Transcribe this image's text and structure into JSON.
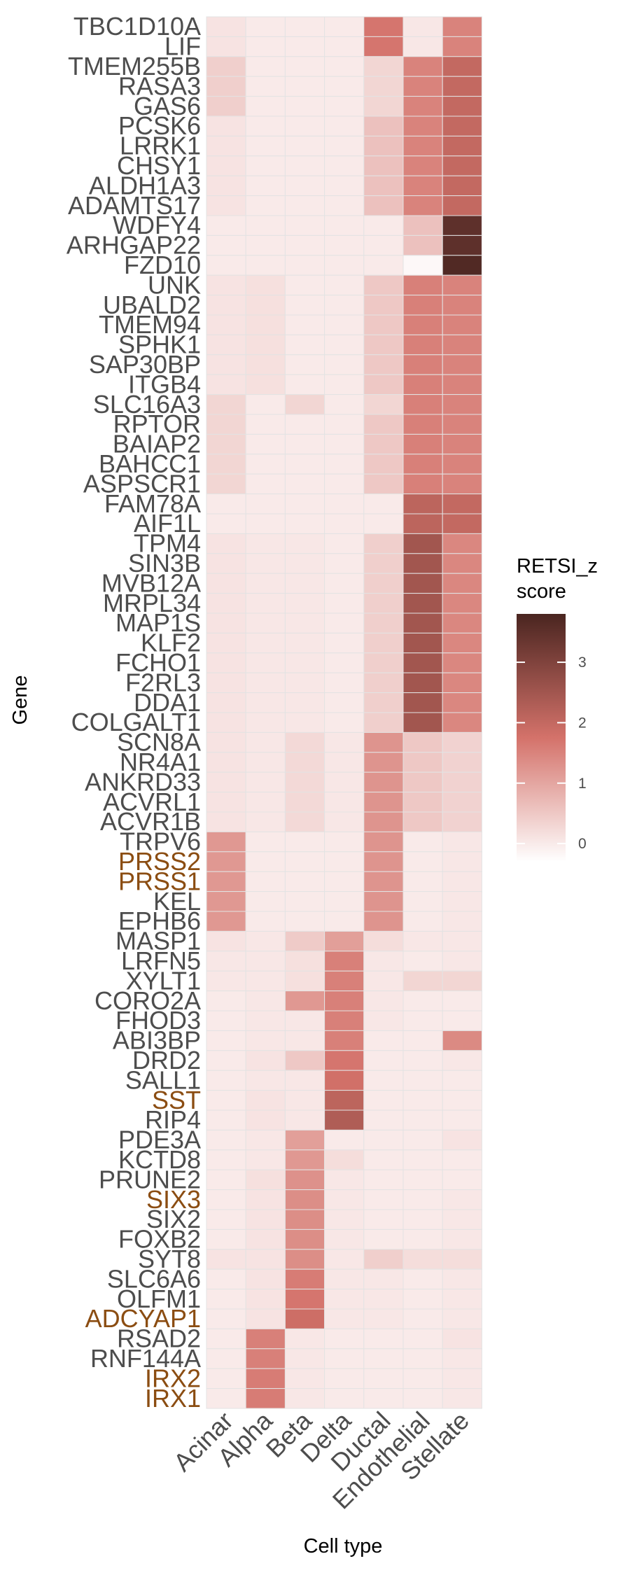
{
  "chart_data": {
    "type": "heatmap",
    "xlabel": "Cell type",
    "ylabel": "Gene",
    "legend_title_lines": [
      "RETSI_z",
      "score"
    ],
    "legend_ticks": [
      0,
      1,
      2,
      3
    ],
    "color_range": [
      -0.3,
      3.8
    ],
    "colors": {
      "low": "#ffffff",
      "mid": "#d4726a",
      "high": "#4a2520",
      "grid": "#e3e3e3",
      "gene_label": "#4d4d4d",
      "highlight_label": "#8b4d12"
    },
    "cell_types": [
      "Acinar",
      "Alpha",
      "Beta",
      "Delta",
      "Ductal",
      "Endothelial",
      "Stellate"
    ],
    "genes": [
      {
        "name": "TBC1D10A",
        "highlight": false,
        "values": [
          0.1,
          0,
          0,
          0,
          1.7,
          0.05,
          1.5
        ]
      },
      {
        "name": "LIF",
        "highlight": false,
        "values": [
          0.1,
          0,
          0,
          0,
          1.7,
          0.05,
          1.5
        ]
      },
      {
        "name": "TMEM255B",
        "highlight": false,
        "values": [
          0.4,
          0,
          0,
          0,
          0.3,
          1.5,
          2.0
        ]
      },
      {
        "name": "RASA3",
        "highlight": false,
        "values": [
          0.4,
          0,
          0,
          0,
          0.3,
          1.5,
          2.0
        ]
      },
      {
        "name": "GAS6",
        "highlight": false,
        "values": [
          0.4,
          0,
          0,
          0,
          0.3,
          1.5,
          2.0
        ]
      },
      {
        "name": "PCSK6",
        "highlight": false,
        "values": [
          0.1,
          0,
          0,
          0,
          0.6,
          1.5,
          2.0
        ]
      },
      {
        "name": "LRRK1",
        "highlight": false,
        "values": [
          0.1,
          0,
          0,
          0,
          0.6,
          1.5,
          2.0
        ]
      },
      {
        "name": "CHSY1",
        "highlight": false,
        "values": [
          0.1,
          0,
          0,
          0,
          0.6,
          1.5,
          2.0
        ]
      },
      {
        "name": "ALDH1A3",
        "highlight": false,
        "values": [
          0.1,
          0,
          0,
          0,
          0.6,
          1.5,
          2.0
        ]
      },
      {
        "name": "ADAMTS17",
        "highlight": false,
        "values": [
          0.1,
          0,
          0,
          0,
          0.6,
          1.5,
          2.0
        ]
      },
      {
        "name": "WDFY4",
        "highlight": false,
        "values": [
          0,
          0,
          0,
          0,
          0,
          0.6,
          3.5
        ]
      },
      {
        "name": "ARHGAP22",
        "highlight": false,
        "values": [
          0,
          0,
          0,
          0,
          0,
          0.6,
          3.5
        ]
      },
      {
        "name": "FZD10",
        "highlight": false,
        "values": [
          0,
          0,
          0,
          0,
          0,
          -0.2,
          3.7
        ]
      },
      {
        "name": "UNK",
        "highlight": false,
        "values": [
          0.1,
          0.15,
          0,
          0,
          0.5,
          1.55,
          1.5
        ]
      },
      {
        "name": "UBALD2",
        "highlight": false,
        "values": [
          0.1,
          0.15,
          0,
          0,
          0.5,
          1.55,
          1.5
        ]
      },
      {
        "name": "TMEM94",
        "highlight": false,
        "values": [
          0.1,
          0.15,
          0,
          0,
          0.5,
          1.55,
          1.5
        ]
      },
      {
        "name": "SPHK1",
        "highlight": false,
        "values": [
          0.1,
          0.15,
          0,
          0,
          0.5,
          1.55,
          1.5
        ]
      },
      {
        "name": "SAP30BP",
        "highlight": false,
        "values": [
          0.1,
          0.15,
          0,
          0,
          0.5,
          1.55,
          1.5
        ]
      },
      {
        "name": "ITGB4",
        "highlight": false,
        "values": [
          0.1,
          0.15,
          0,
          0,
          0.5,
          1.55,
          1.5
        ]
      },
      {
        "name": "SLC16A3",
        "highlight": false,
        "values": [
          0.3,
          0,
          0.3,
          0,
          0.3,
          1.55,
          1.5
        ]
      },
      {
        "name": "RPTOR",
        "highlight": false,
        "values": [
          0.3,
          0,
          0,
          0,
          0.5,
          1.55,
          1.5
        ]
      },
      {
        "name": "BAIAP2",
        "highlight": false,
        "values": [
          0.3,
          0,
          0,
          0,
          0.5,
          1.55,
          1.5
        ]
      },
      {
        "name": "BAHCC1",
        "highlight": false,
        "values": [
          0.3,
          0,
          0,
          0,
          0.5,
          1.55,
          1.5
        ]
      },
      {
        "name": "ASPSCR1",
        "highlight": false,
        "values": [
          0.3,
          0,
          0,
          0,
          0.5,
          1.55,
          1.5
        ]
      },
      {
        "name": "FAM78A",
        "highlight": false,
        "values": [
          0,
          0,
          0,
          0,
          0,
          2.1,
          2.0
        ]
      },
      {
        "name": "AIF1L",
        "highlight": false,
        "values": [
          0,
          0,
          0,
          0,
          0,
          2.1,
          2.0
        ]
      },
      {
        "name": "TPM4",
        "highlight": false,
        "values": [
          0.1,
          0.05,
          0.05,
          0,
          0.4,
          2.5,
          1.45
        ]
      },
      {
        "name": "SIN3B",
        "highlight": false,
        "values": [
          0.1,
          0.05,
          0.05,
          0,
          0.4,
          2.5,
          1.45
        ]
      },
      {
        "name": "MVB12A",
        "highlight": false,
        "values": [
          0.1,
          0.05,
          0.05,
          0,
          0.4,
          2.5,
          1.45
        ]
      },
      {
        "name": "MRPL34",
        "highlight": false,
        "values": [
          0.1,
          0.05,
          0.05,
          0,
          0.4,
          2.5,
          1.45
        ]
      },
      {
        "name": "MAP1S",
        "highlight": false,
        "values": [
          0.1,
          0.05,
          0.05,
          0,
          0.4,
          2.5,
          1.45
        ]
      },
      {
        "name": "KLF2",
        "highlight": false,
        "values": [
          0.1,
          0.05,
          0.05,
          0,
          0.4,
          2.5,
          1.45
        ]
      },
      {
        "name": "FCHO1",
        "highlight": false,
        "values": [
          0.1,
          0.05,
          0.05,
          0,
          0.4,
          2.5,
          1.45
        ]
      },
      {
        "name": "F2RL3",
        "highlight": false,
        "values": [
          0.1,
          0.05,
          0.05,
          0,
          0.4,
          2.5,
          1.45
        ]
      },
      {
        "name": "DDA1",
        "highlight": false,
        "values": [
          0.1,
          0.05,
          0.05,
          0,
          0.4,
          2.5,
          1.45
        ]
      },
      {
        "name": "COLGALT1",
        "highlight": false,
        "values": [
          0.1,
          0.05,
          0.05,
          0,
          0.4,
          2.5,
          1.45
        ]
      },
      {
        "name": "SCN8A",
        "highlight": false,
        "values": [
          0.1,
          0.05,
          0.25,
          0.05,
          1.25,
          0.5,
          0.35
        ]
      },
      {
        "name": "NR4A1",
        "highlight": false,
        "values": [
          0.1,
          0.05,
          0.25,
          0.05,
          1.25,
          0.5,
          0.35
        ]
      },
      {
        "name": "ANKRD33",
        "highlight": false,
        "values": [
          0.1,
          0.05,
          0.25,
          0.05,
          1.25,
          0.5,
          0.35
        ]
      },
      {
        "name": "ACVRL1",
        "highlight": false,
        "values": [
          0.1,
          0.05,
          0.25,
          0.05,
          1.25,
          0.5,
          0.35
        ]
      },
      {
        "name": "ACVR1B",
        "highlight": false,
        "values": [
          0.1,
          0.05,
          0.25,
          0.05,
          1.25,
          0.5,
          0.35
        ]
      },
      {
        "name": "TRPV6",
        "highlight": false,
        "values": [
          1.2,
          0,
          0,
          0,
          1.25,
          0,
          0.05
        ]
      },
      {
        "name": "PRSS2",
        "highlight": true,
        "values": [
          1.2,
          0,
          0,
          0,
          1.25,
          0,
          0.05
        ]
      },
      {
        "name": "PRSS1",
        "highlight": true,
        "values": [
          1.2,
          0,
          0,
          0,
          1.25,
          0,
          0.05
        ]
      },
      {
        "name": "KEL",
        "highlight": false,
        "values": [
          1.2,
          0,
          0,
          0,
          1.25,
          0,
          0.05
        ]
      },
      {
        "name": "EPHB6",
        "highlight": false,
        "values": [
          1.2,
          0,
          0,
          0,
          1.25,
          0,
          0.05
        ]
      },
      {
        "name": "MASP1",
        "highlight": false,
        "values": [
          0.1,
          0.05,
          0.45,
          1.1,
          0.2,
          0.05,
          0.05
        ]
      },
      {
        "name": "LRFN5",
        "highlight": false,
        "values": [
          0.05,
          0.05,
          0.15,
          1.55,
          0.05,
          0,
          0.05
        ]
      },
      {
        "name": "XYLT1",
        "highlight": false,
        "values": [
          0.05,
          0.05,
          0.15,
          1.55,
          0.05,
          0.3,
          0.3
        ]
      },
      {
        "name": "CORO2A",
        "highlight": false,
        "values": [
          0,
          0.05,
          1.2,
          1.55,
          0.05,
          0,
          0
        ]
      },
      {
        "name": "FHOD3",
        "highlight": false,
        "values": [
          0,
          0.05,
          0.05,
          1.55,
          0.05,
          0,
          0
        ]
      },
      {
        "name": "ABI3BP",
        "highlight": false,
        "values": [
          0,
          0.05,
          0.05,
          1.55,
          0,
          0,
          1.4
        ]
      },
      {
        "name": "DRD2",
        "highlight": false,
        "values": [
          0,
          0.1,
          0.5,
          1.7,
          0,
          0,
          0.05
        ]
      },
      {
        "name": "SALL1",
        "highlight": false,
        "values": [
          0,
          0.05,
          0.05,
          1.8,
          0,
          0,
          0
        ]
      },
      {
        "name": "SST",
        "highlight": true,
        "values": [
          0,
          0.1,
          0.05,
          2.1,
          0,
          0,
          0
        ]
      },
      {
        "name": "RIP4",
        "highlight": false,
        "values": [
          0,
          0.1,
          0.05,
          2.3,
          0,
          0,
          0
        ]
      },
      {
        "name": "PDE3A",
        "highlight": false,
        "values": [
          0,
          0.05,
          1.1,
          0,
          0,
          0,
          0.1
        ]
      },
      {
        "name": "KCTD8",
        "highlight": false,
        "values": [
          0,
          0.05,
          1.2,
          0.2,
          0,
          0,
          0
        ]
      },
      {
        "name": "PRUNE2",
        "highlight": false,
        "values": [
          0,
          0.15,
          1.3,
          0.05,
          0,
          0,
          0
        ]
      },
      {
        "name": "SIX3",
        "highlight": true,
        "values": [
          0,
          0.1,
          1.35,
          0.05,
          0,
          0,
          0.05
        ]
      },
      {
        "name": "SIX2",
        "highlight": false,
        "values": [
          0,
          0.1,
          1.35,
          0.05,
          0,
          0,
          0.05
        ]
      },
      {
        "name": "FOXB2",
        "highlight": false,
        "values": [
          0,
          0.1,
          1.35,
          0.05,
          0,
          0,
          0.05
        ]
      },
      {
        "name": "SYT8",
        "highlight": false,
        "values": [
          0.1,
          0.1,
          1.35,
          0.05,
          0.4,
          0.2,
          0.2
        ]
      },
      {
        "name": "SLC6A6",
        "highlight": false,
        "values": [
          0,
          0.1,
          1.6,
          0.05,
          0.05,
          0,
          0.05
        ]
      },
      {
        "name": "OLFM1",
        "highlight": false,
        "values": [
          0,
          0.1,
          1.7,
          0.05,
          0.05,
          0,
          0.05
        ]
      },
      {
        "name": "ADCYAP1",
        "highlight": true,
        "values": [
          0,
          0.1,
          1.85,
          0.05,
          0.05,
          0,
          0.05
        ]
      },
      {
        "name": "RSAD2",
        "highlight": false,
        "values": [
          0,
          1.55,
          0.05,
          0,
          0,
          0,
          0.1
        ]
      },
      {
        "name": "RNF144A",
        "highlight": false,
        "values": [
          0,
          1.55,
          0.05,
          0,
          0,
          0,
          0.05
        ]
      },
      {
        "name": "IRX2",
        "highlight": true,
        "values": [
          0,
          1.6,
          0.05,
          0,
          0,
          0,
          0.05
        ]
      },
      {
        "name": "IRX1",
        "highlight": true,
        "values": [
          0,
          1.6,
          0.05,
          0,
          0,
          0,
          0.05
        ]
      }
    ]
  }
}
